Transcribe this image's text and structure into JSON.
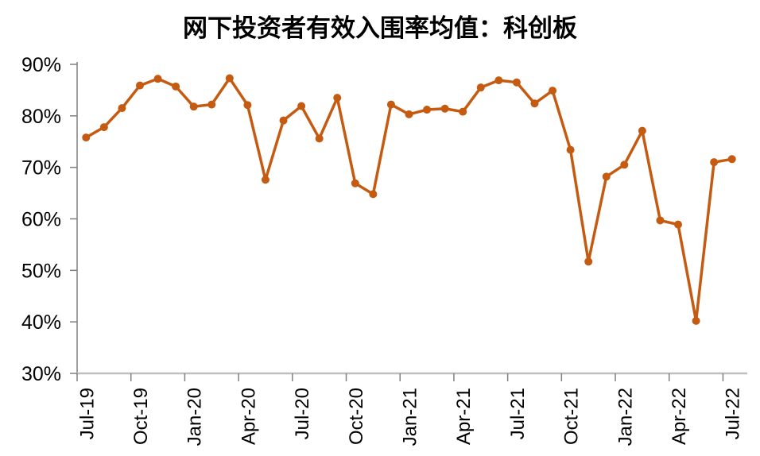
{
  "chart_data": {
    "type": "line",
    "title": "网下投资者有效入围率均值：科创板",
    "xlabel": "",
    "ylabel": "",
    "unit": "%",
    "x": [
      "Jul-19",
      "Aug-19",
      "Sep-19",
      "Oct-19",
      "Nov-19",
      "Dec-19",
      "Jan-20",
      "Feb-20",
      "Mar-20",
      "Apr-20",
      "May-20",
      "Jun-20",
      "Jul-20",
      "Aug-20",
      "Sep-20",
      "Oct-20",
      "Nov-20",
      "Dec-20",
      "Jan-21",
      "Feb-21",
      "Mar-21",
      "Apr-21",
      "May-21",
      "Jun-21",
      "Jul-21",
      "Aug-21",
      "Sep-21",
      "Oct-21",
      "Nov-21",
      "Dec-21",
      "Jan-22",
      "Feb-22",
      "Mar-22",
      "Apr-22",
      "May-22",
      "Jun-22",
      "Jul-22"
    ],
    "values": [
      75.8,
      77.8,
      81.5,
      85.9,
      87.2,
      85.7,
      81.8,
      82.2,
      87.3,
      82.1,
      67.6,
      79.1,
      81.9,
      75.6,
      83.5,
      66.9,
      64.8,
      82.2,
      80.3,
      81.2,
      81.4,
      80.8,
      85.5,
      86.9,
      86.5,
      82.4,
      84.9,
      73.4,
      51.7,
      68.2,
      70.5,
      77.1,
      59.7,
      58.9,
      40.2,
      71.0,
      71.6
    ],
    "ylim": [
      30,
      90
    ],
    "ytick_step": 10,
    "ytick_labels": [
      "30%",
      "40%",
      "50%",
      "60%",
      "70%",
      "80%",
      "90%"
    ],
    "xtick_labels": [
      "Jul-19",
      "Oct-19",
      "Jan-20",
      "Apr-20",
      "Jul-20",
      "Oct-20",
      "Jan-21",
      "Apr-21",
      "Jul-21",
      "Oct-21",
      "Jan-22",
      "Apr-22",
      "Jul-22"
    ],
    "xtick_interval": 3,
    "grid": false,
    "legend_position": "none",
    "marker": "circle",
    "colors": {
      "line": "#C55A11",
      "marker": "#C55A11",
      "x_axis": "#BFBFBF",
      "y_axis": "#808080",
      "tick": "#808080",
      "text": "#000000",
      "background": "#FFFFFF"
    }
  }
}
